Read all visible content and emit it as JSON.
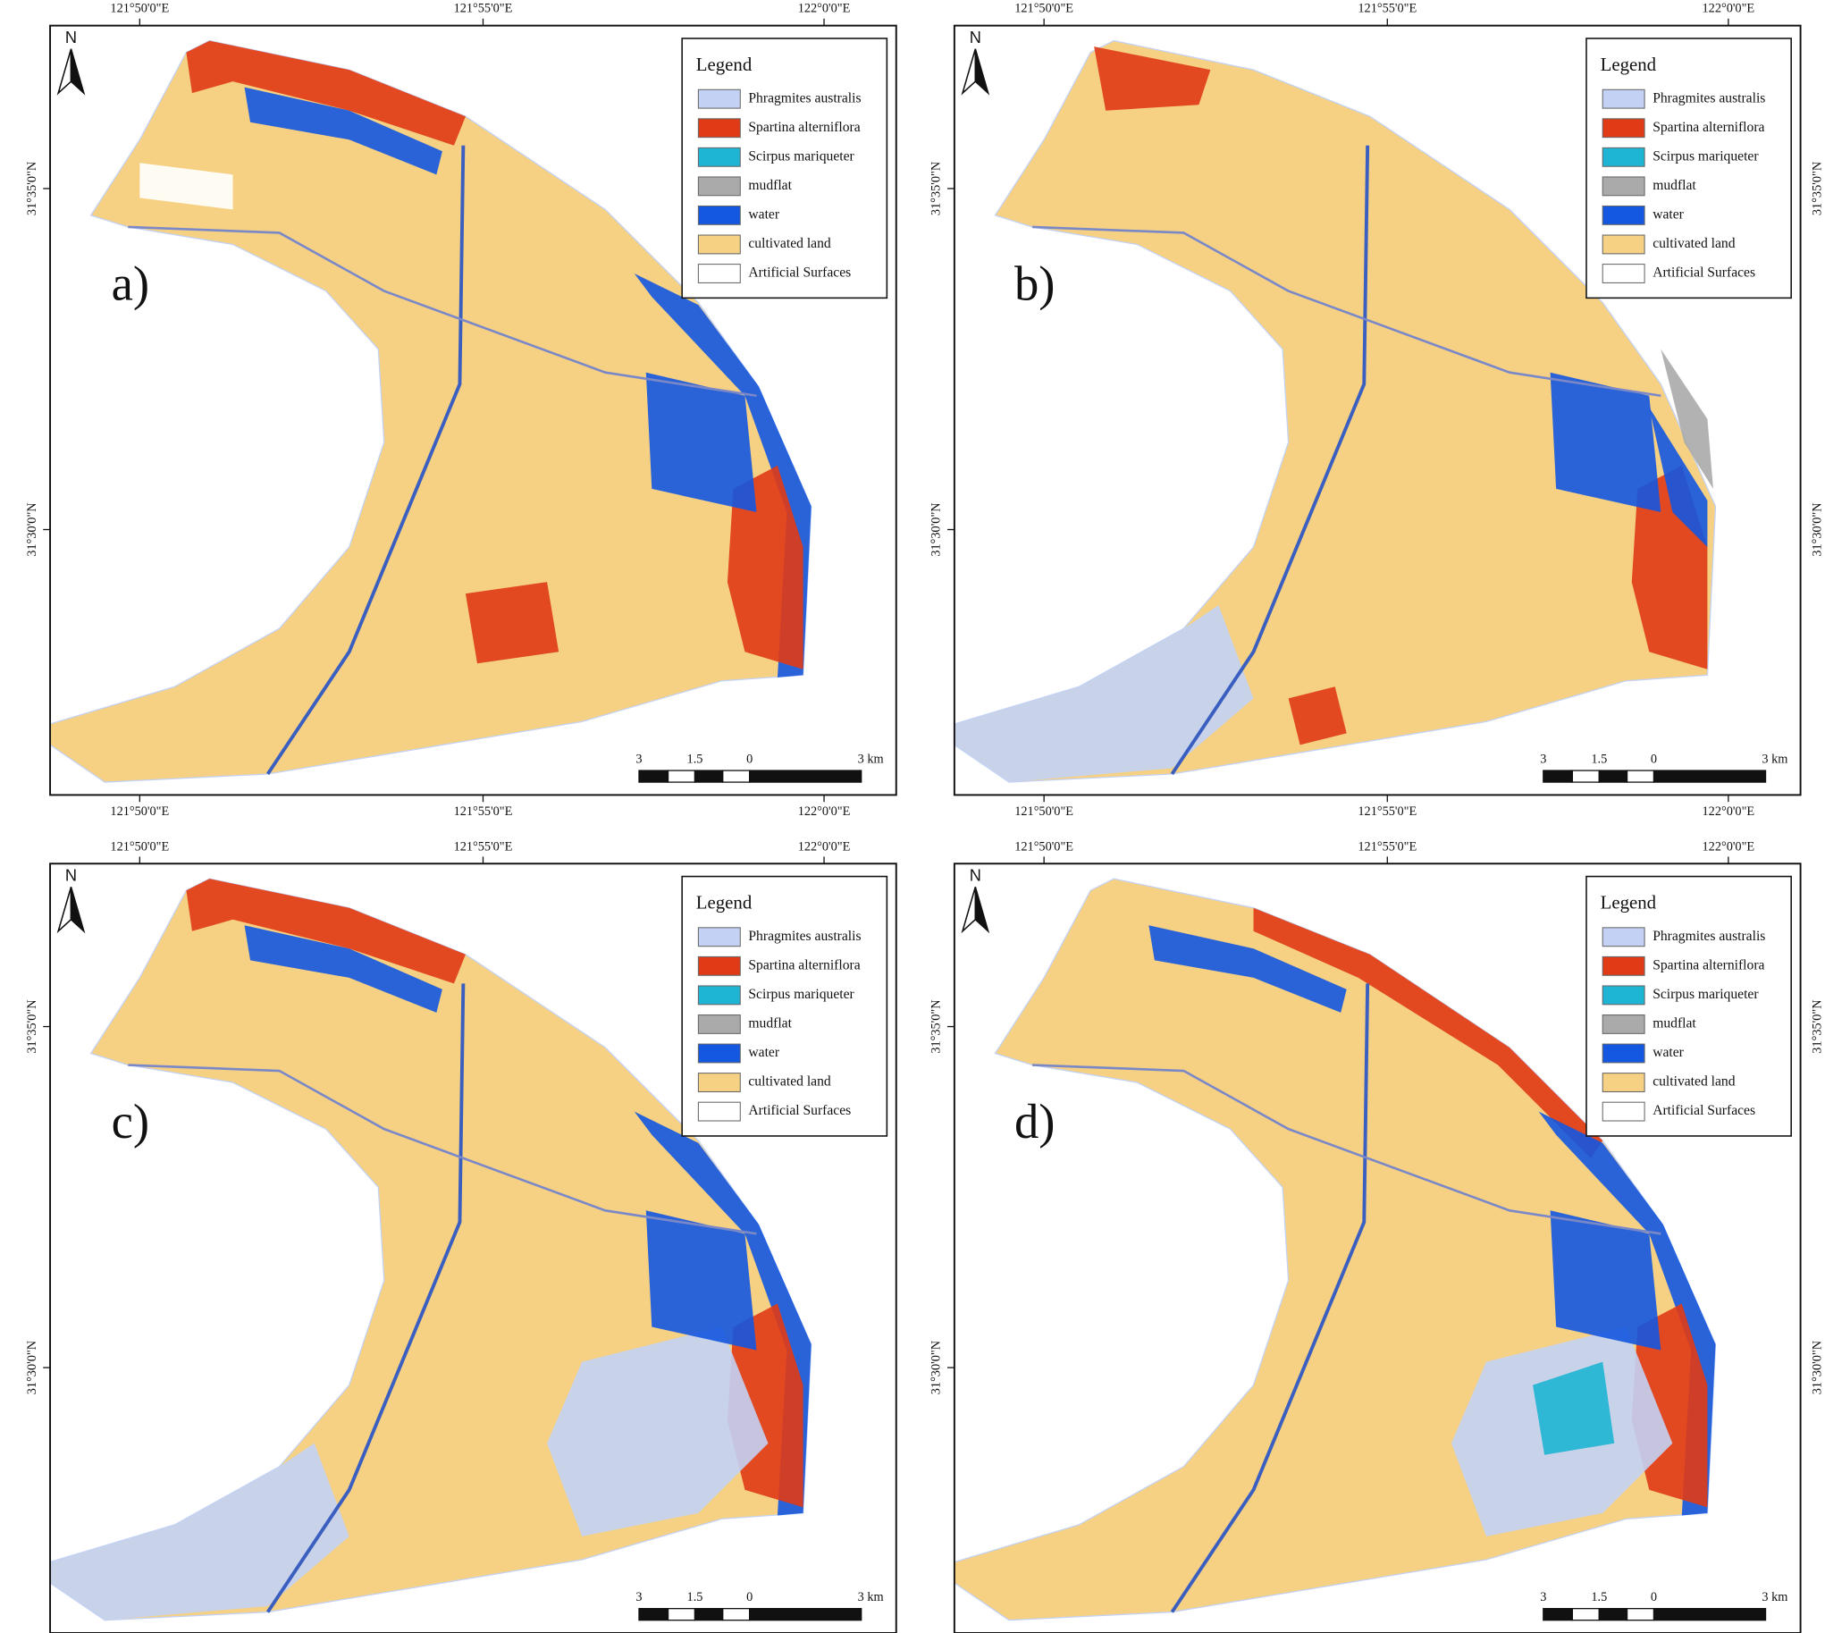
{
  "coordinates": {
    "longitude": [
      "121°50'0\"E",
      "121°55'0\"E",
      "122°0'0\"E"
    ],
    "latitude": [
      "31°35'0\"N",
      "31°30'0\"N"
    ]
  },
  "north_label": "N",
  "legend": {
    "title": "Legend",
    "items": [
      {
        "label": "Phragmites australis",
        "color": "#c3d2f4"
      },
      {
        "label": "Spartina alterniflora",
        "color": "#e03a16"
      },
      {
        "label": "Scirpus mariqueter",
        "color": "#1eb4d4"
      },
      {
        "label": "mudflat",
        "color": "#aaaaaa"
      },
      {
        "label": "water",
        "color": "#1457e0"
      },
      {
        "label": "cultivated land",
        "color": "#f6d184"
      },
      {
        "label": "Artificial Surfaces",
        "color": "#ffffff"
      }
    ]
  },
  "scale_bar": {
    "labels": [
      "3",
      "1.5",
      "0",
      "3 km"
    ]
  },
  "panels": [
    {
      "label": "a)"
    },
    {
      "label": "b)"
    },
    {
      "label": "c)"
    },
    {
      "label": "d)"
    }
  ]
}
